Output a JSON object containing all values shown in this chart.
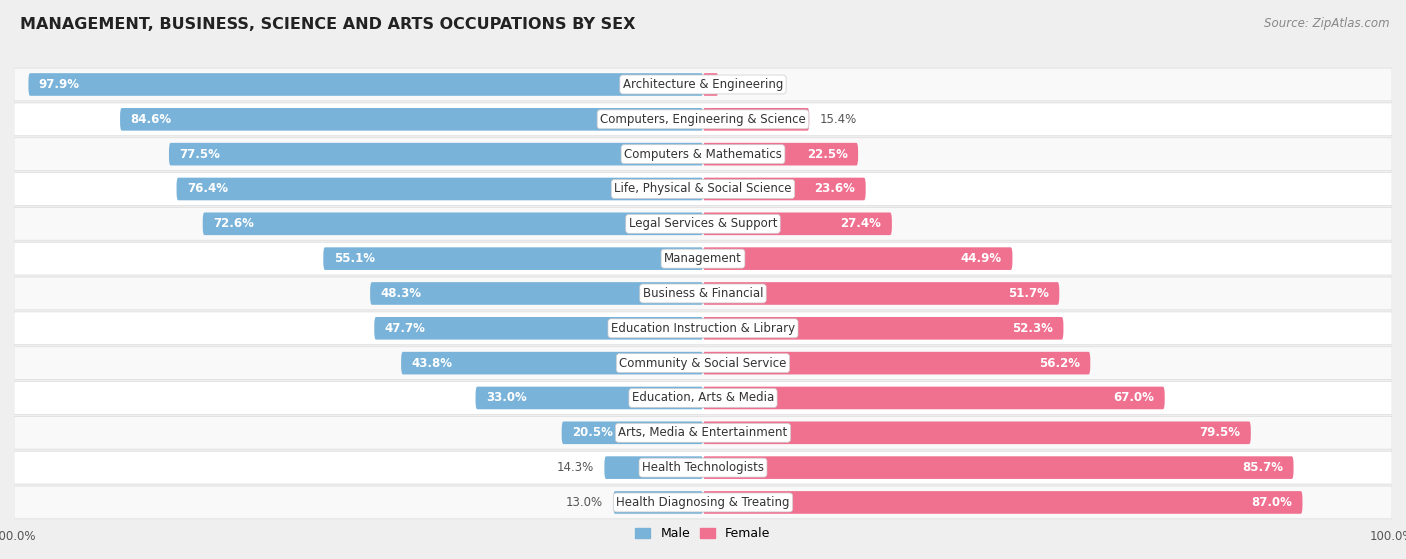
{
  "title": "MANAGEMENT, BUSINESS, SCIENCE AND ARTS OCCUPATIONS BY SEX",
  "source": "Source: ZipAtlas.com",
  "categories": [
    "Architecture & Engineering",
    "Computers, Engineering & Science",
    "Computers & Mathematics",
    "Life, Physical & Social Science",
    "Legal Services & Support",
    "Management",
    "Business & Financial",
    "Education Instruction & Library",
    "Community & Social Service",
    "Education, Arts & Media",
    "Arts, Media & Entertainment",
    "Health Technologists",
    "Health Diagnosing & Treating"
  ],
  "male_pct": [
    97.9,
    84.6,
    77.5,
    76.4,
    72.6,
    55.1,
    48.3,
    47.7,
    43.8,
    33.0,
    20.5,
    14.3,
    13.0
  ],
  "female_pct": [
    2.2,
    15.4,
    22.5,
    23.6,
    27.4,
    44.9,
    51.7,
    52.3,
    56.2,
    67.0,
    79.5,
    85.7,
    87.0
  ],
  "male_color": "#7ab3d9",
  "female_color": "#f07090",
  "bg_color": "#efefef",
  "row_bg_even": "#f9f9f9",
  "row_bg_odd": "#ffffff",
  "title_fontsize": 11.5,
  "label_fontsize": 8.5,
  "source_fontsize": 8.5
}
